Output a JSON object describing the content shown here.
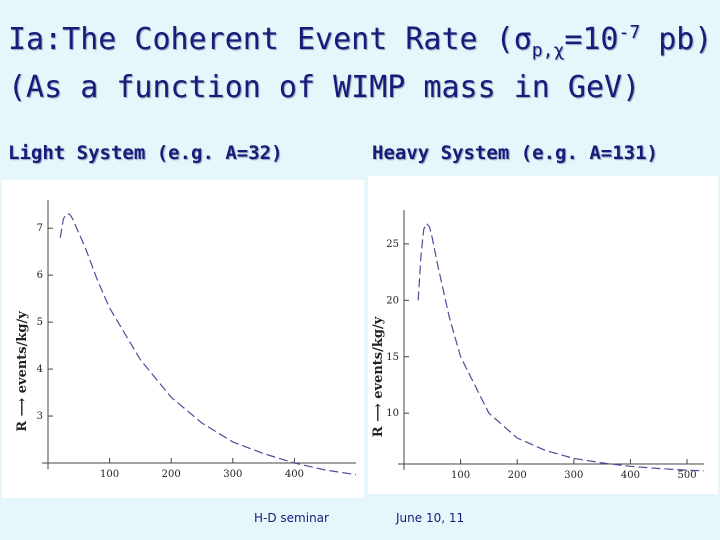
{
  "title": {
    "line1_a": "Ia:The Coherent  Event Rate (σ",
    "line1_sub": "p,χ",
    "line1_b": "=10",
    "line1_sup": "-7",
    "line1_c": " pb)",
    "line2": "(As a function of  WIMP mass in GeV)"
  },
  "panels": {
    "left_heading": "Light System (e.g. A=32)",
    "right_heading": "Heavy System (e.g. A=131)"
  },
  "footer": {
    "left": "H-D seminar",
    "right": "June 10, 11"
  },
  "colors": {
    "background": "#e6f7fb",
    "title": "#1a1a7a",
    "curve": "#4a4f9a",
    "axis": "#444444"
  },
  "chart_data": [
    {
      "type": "line",
      "title": "Light System (e.g. A=32)",
      "xlabel": "",
      "ylabel": "R ⟶ events/kg/y",
      "xlim": [
        0,
        500
      ],
      "ylim": [
        2,
        7.6
      ],
      "xticks": [
        100,
        200,
        300,
        400
      ],
      "yticks": [
        3,
        4,
        5,
        6,
        7
      ],
      "series": [
        {
          "name": "Coherent event rate",
          "x": [
            20,
            25,
            30,
            35,
            40,
            50,
            60,
            80,
            100,
            150,
            200,
            250,
            300,
            350,
            400,
            450,
            500
          ],
          "y": [
            6.8,
            7.2,
            7.3,
            7.3,
            7.2,
            6.9,
            6.6,
            5.9,
            5.3,
            4.2,
            3.4,
            2.85,
            2.45,
            2.2,
            2.0,
            1.85,
            1.75
          ]
        }
      ]
    },
    {
      "type": "line",
      "title": "Heavy System (e.g. A=131)",
      "xlabel": "",
      "ylabel": "R ⟶ events/kg/y",
      "xlim": [
        0,
        530
      ],
      "ylim": [
        5.5,
        28
      ],
      "xticks": [
        100,
        200,
        300,
        400,
        500
      ],
      "yticks": [
        10,
        15,
        20,
        25
      ],
      "series": [
        {
          "name": "Coherent event rate",
          "x": [
            25,
            30,
            35,
            40,
            45,
            50,
            60,
            80,
            100,
            150,
            200,
            250,
            300,
            350,
            400,
            450,
            500,
            530
          ],
          "y": [
            20,
            24,
            26.3,
            26.8,
            26.5,
            25.5,
            23,
            18.5,
            15,
            10,
            7.8,
            6.7,
            6.0,
            5.6,
            5.3,
            5.1,
            4.95,
            4.9
          ]
        }
      ]
    }
  ]
}
